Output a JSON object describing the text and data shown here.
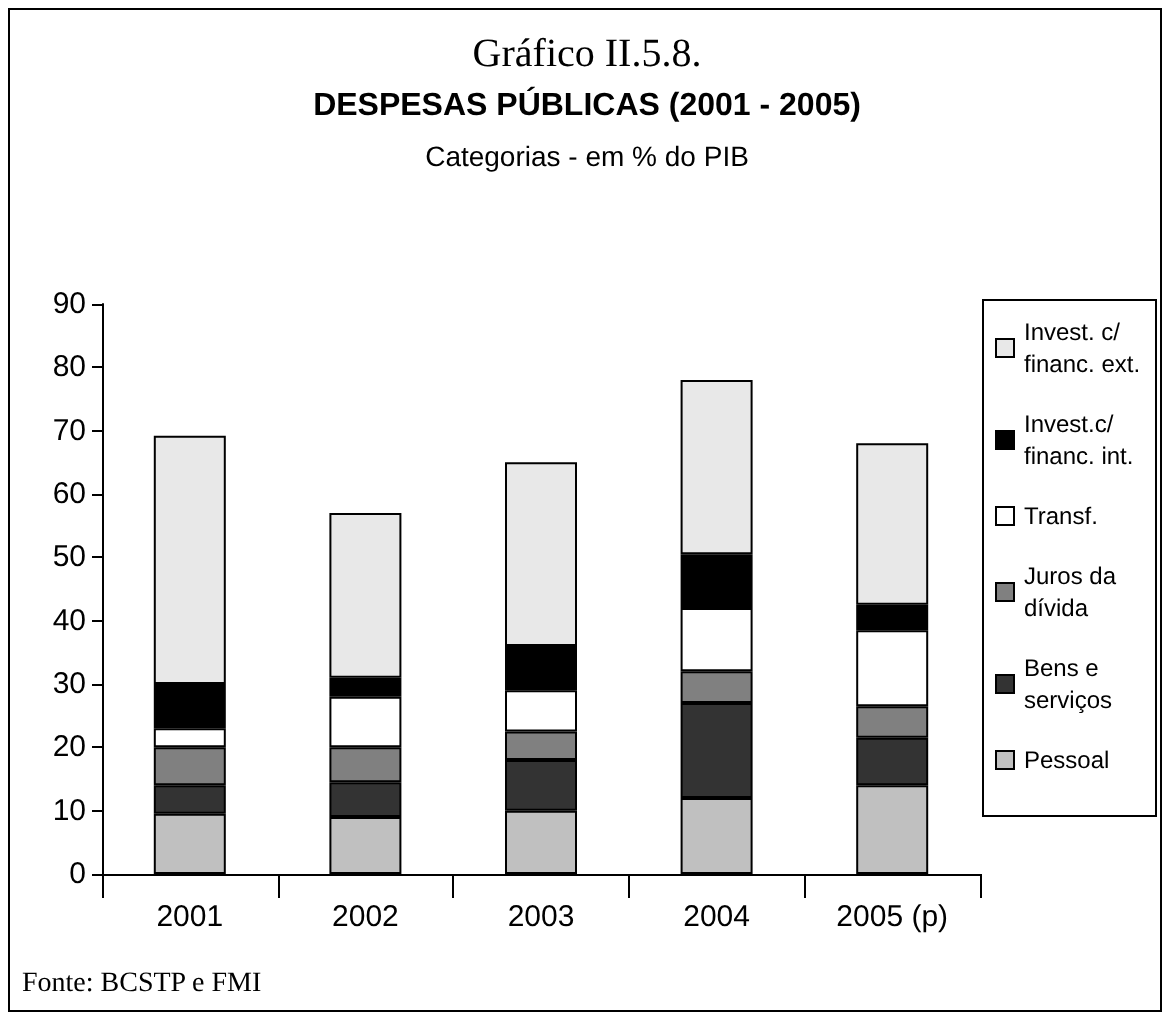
{
  "chart_data": {
    "type": "bar",
    "stacked": true,
    "title": "Gráfico II.5.8.",
    "subtitle": "DESPESAS PÚBLICAS (2001 - 2005)",
    "ylabel": "Categorias - em % do PIB",
    "categories": [
      "2001",
      "2002",
      "2003",
      "2004",
      "2005 (p)"
    ],
    "series": [
      {
        "name": "Pessoal",
        "color": "#c0c0c0",
        "values": [
          9.5,
          9,
          10,
          12,
          14
        ]
      },
      {
        "name": "Bens e serviços",
        "color": "#333333",
        "values": [
          4.5,
          5.5,
          8,
          15,
          7.5
        ]
      },
      {
        "name": "Juros da dívida",
        "color": "#808080",
        "values": [
          6,
          5.5,
          4.5,
          5,
          5
        ]
      },
      {
        "name": "Transf.",
        "color": "#ffffff",
        "values": [
          3,
          8,
          6.5,
          10,
          12
        ]
      },
      {
        "name": "Invest.c/ financ. int.",
        "color": "#000000",
        "values": [
          7,
          3,
          7,
          8.5,
          4
        ]
      },
      {
        "name": "Invest. c/ financ. ext.",
        "color": "#e8e8e8",
        "values": [
          39.2,
          26,
          29,
          27.5,
          25.5
        ]
      }
    ],
    "ylim": [
      0,
      90
    ],
    "yticks": [
      0,
      10,
      20,
      30,
      40,
      50,
      60,
      70,
      80,
      90
    ],
    "grid": false,
    "legend": "right",
    "annotations": [
      "Fonte: BCSTP e FMI"
    ]
  }
}
